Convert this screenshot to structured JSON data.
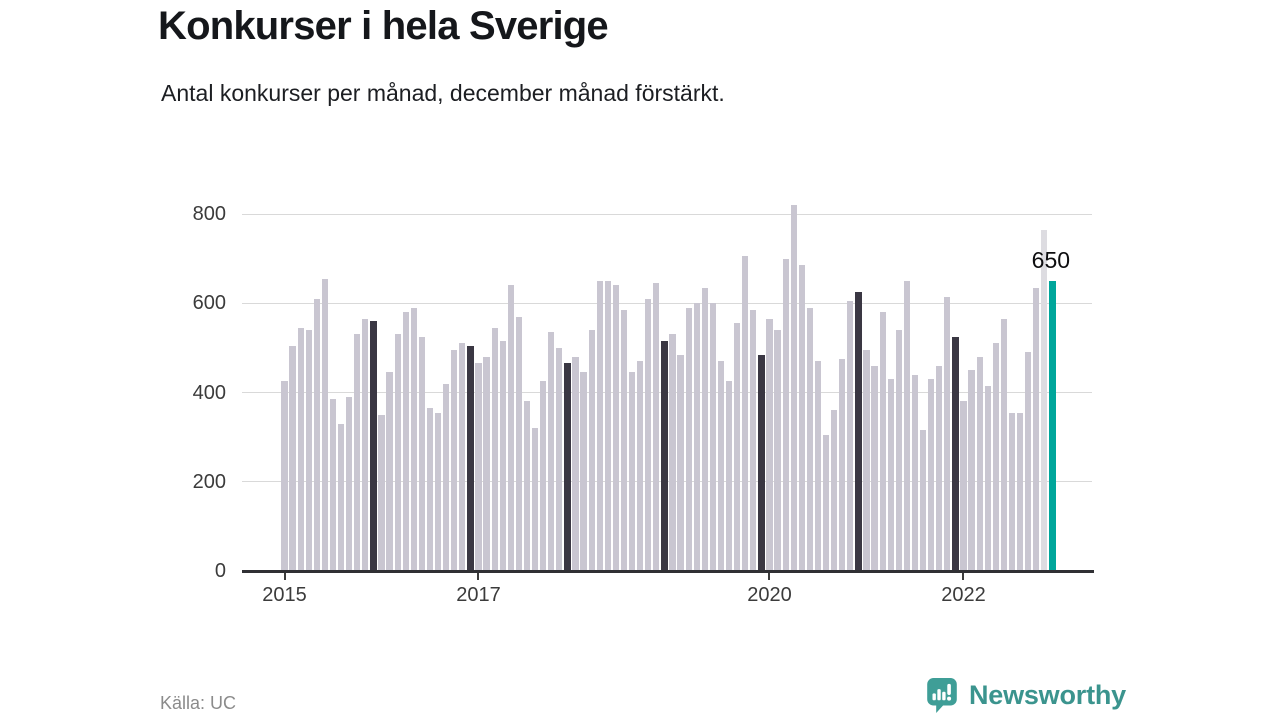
{
  "header": {
    "title": "Konkurser i hela Sverige",
    "subtitle": "Antal konkurser per månad, december månad förstärkt."
  },
  "chart_data": {
    "type": "bar",
    "title": "Konkurser i hela Sverige",
    "subtitle": "Antal konkurser per månad, december månad förstärkt.",
    "x_start": "2015-01",
    "x_end": "2022-12",
    "years": [
      {
        "year": 2015,
        "values": [
          425,
          505,
          545,
          540,
          610,
          655,
          385,
          330,
          390,
          530,
          565,
          560
        ]
      },
      {
        "year": 2016,
        "values": [
          350,
          445,
          530,
          580,
          590,
          525,
          365,
          355,
          420,
          495,
          510,
          505
        ]
      },
      {
        "year": 2017,
        "values": [
          465,
          480,
          545,
          515,
          640,
          570,
          380,
          320,
          425,
          535,
          500,
          465
        ]
      },
      {
        "year": 2018,
        "values": [
          480,
          445,
          540,
          650,
          650,
          640,
          585,
          445,
          470,
          610,
          645,
          515
        ]
      },
      {
        "year": 2019,
        "values": [
          530,
          485,
          590,
          600,
          635,
          600,
          470,
          425,
          555,
          705,
          585,
          485
        ]
      },
      {
        "year": 2020,
        "values": [
          565,
          540,
          700,
          820,
          685,
          590,
          470,
          305,
          360,
          475,
          605,
          625
        ]
      },
      {
        "year": 2021,
        "values": [
          495,
          460,
          580,
          430,
          540,
          650,
          440,
          315,
          430,
          460,
          615,
          525
        ]
      },
      {
        "year": 2022,
        "values": [
          380,
          450,
          480,
          415,
          510,
          565,
          355,
          355,
          490,
          635,
          765,
          650
        ]
      }
    ],
    "ylim": [
      0,
      800
    ],
    "yticks": [
      0,
      200,
      400,
      600,
      800
    ],
    "xticks": [
      "2015",
      "2017",
      "2020",
      "2022"
    ],
    "grid": true,
    "legend": false,
    "highlight": {
      "month": "2022-12",
      "value": 650,
      "label": "650"
    },
    "styles": {
      "normal_color": "#c9c6d1",
      "december_color": "#3a3743",
      "latest_color": "#00a69b",
      "previous_month_color": "#dddce1",
      "gridline_color": "#d9d9d9",
      "axis_color": "#303034"
    }
  },
  "footer": {
    "source": "Källa: UC",
    "brand": "Newsworthy",
    "brand_icon": "newsworthy-speech-bubble-chart-icon"
  }
}
